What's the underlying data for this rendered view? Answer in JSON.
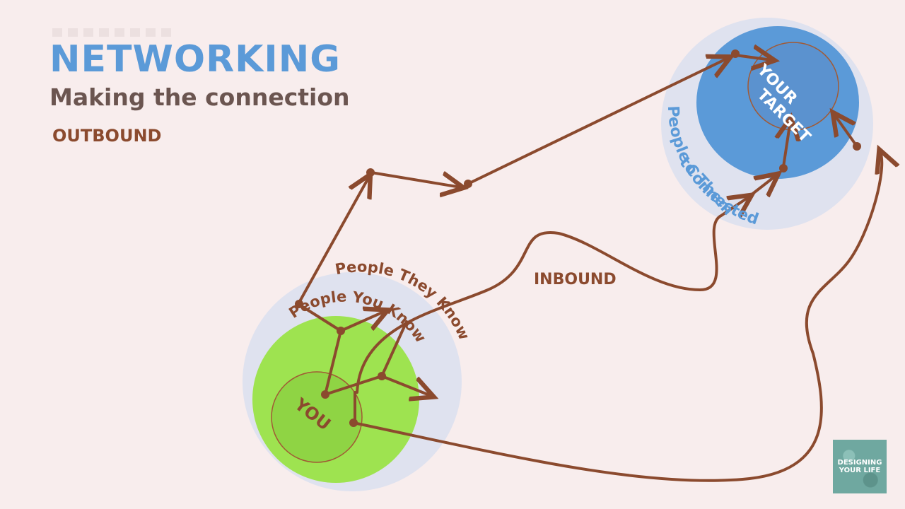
{
  "header": {
    "title": "NETWORKING",
    "subtitle": "Making the connection"
  },
  "labels": {
    "outbound": "OUTBOUND",
    "inbound": "INBOUND",
    "you": "YOU",
    "people_you_know": "People You Know",
    "people_they_know": "People They Know",
    "your_target_line1": "YOUR",
    "your_target_line2": "TARGET",
    "people_connected_line1": "People Connected",
    "people_connected_line2": "to Them"
  },
  "logo": {
    "line1": "DESIGNING",
    "line2": "YOUR LIFE"
  },
  "colors": {
    "background": "#f8eded",
    "title_blue": "#5b9ad8",
    "subtitle_gray": "#6b5550",
    "arrow_brown": "#8b4a2e",
    "you_green": "#9ee350",
    "target_blue": "#5b9ad8"
  }
}
